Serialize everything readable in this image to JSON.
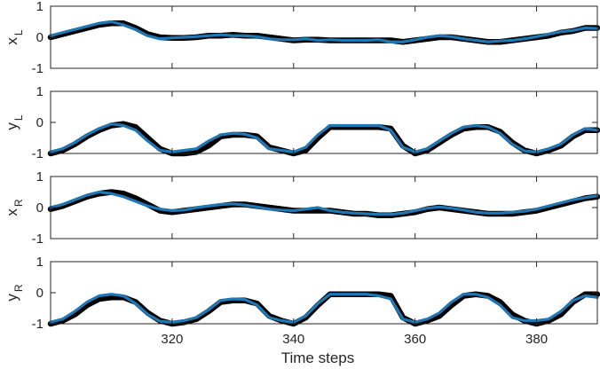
{
  "chart_data": {
    "type": "line",
    "xlabel": "Time steps",
    "xlim": [
      300,
      390
    ],
    "xticks": [
      320,
      340,
      360,
      380
    ],
    "colors": {
      "reference": "#000000",
      "prediction": "#1f77b4"
    },
    "panels": [
      {
        "ylabel_main": "x",
        "ylabel_sub": "L",
        "ylim": [
          -1,
          1
        ],
        "yticks": [
          -1,
          0,
          1
        ],
        "series": [
          {
            "x": [
              300,
              302,
              304,
              306,
              308,
              310,
              312,
              314,
              316,
              318,
              320,
              322,
              324,
              326,
              328,
              330,
              332,
              334,
              336,
              338,
              340,
              342,
              344,
              346,
              348,
              350,
              352,
              354,
              356,
              358,
              360,
              362,
              364,
              366,
              368,
              370,
              372,
              374,
              376,
              378,
              380,
              382,
              384,
              386,
              388,
              390
            ],
            "values": [
              0.0,
              0.1,
              0.2,
              0.3,
              0.4,
              0.45,
              0.45,
              0.3,
              0.1,
              0.0,
              -0.02,
              -0.02,
              0.0,
              0.05,
              0.05,
              0.08,
              0.05,
              0.05,
              0.0,
              -0.05,
              -0.1,
              -0.08,
              -0.08,
              -0.1,
              -0.1,
              -0.1,
              -0.1,
              -0.1,
              -0.1,
              -0.15,
              -0.1,
              -0.05,
              0.0,
              0.0,
              -0.05,
              -0.1,
              -0.15,
              -0.15,
              -0.1,
              -0.05,
              0.0,
              0.05,
              0.15,
              0.2,
              0.3,
              0.3
            ]
          },
          {
            "x": [
              300,
              302,
              304,
              306,
              308,
              310,
              312,
              314,
              316,
              318,
              320,
              322,
              324,
              326,
              328,
              330,
              332,
              334,
              336,
              338,
              340,
              342,
              344,
              346,
              348,
              350,
              352,
              354,
              356,
              358,
              360,
              362,
              364,
              366,
              368,
              370,
              372,
              374,
              376,
              378,
              380,
              382,
              384,
              386,
              388,
              390
            ],
            "values": [
              0.05,
              0.15,
              0.25,
              0.35,
              0.45,
              0.5,
              0.4,
              0.25,
              0.05,
              -0.05,
              -0.02,
              0.0,
              0.02,
              0.05,
              0.08,
              0.05,
              0.05,
              0.02,
              -0.05,
              -0.08,
              -0.08,
              -0.05,
              -0.1,
              -0.08,
              -0.1,
              -0.1,
              -0.1,
              -0.08,
              -0.15,
              -0.15,
              -0.08,
              0.0,
              0.05,
              0.02,
              -0.05,
              -0.1,
              -0.15,
              -0.12,
              -0.1,
              -0.05,
              0.02,
              0.1,
              0.18,
              0.22,
              0.3,
              0.28
            ]
          }
        ]
      },
      {
        "ylabel_main": "y",
        "ylabel_sub": "L",
        "ylim": [
          -1,
          1
        ],
        "yticks": [
          -1,
          0,
          1
        ],
        "series": [
          {
            "x": [
              300,
              302,
              304,
              306,
              308,
              310,
              312,
              314,
              316,
              318,
              320,
              322,
              324,
              326,
              328,
              330,
              332,
              334,
              336,
              338,
              340,
              342,
              344,
              346,
              348,
              350,
              352,
              354,
              356,
              358,
              360,
              362,
              364,
              366,
              368,
              370,
              372,
              374,
              376,
              378,
              380,
              382,
              384,
              386,
              388,
              390
            ],
            "values": [
              -1.0,
              -0.9,
              -0.7,
              -0.45,
              -0.25,
              -0.1,
              -0.05,
              -0.15,
              -0.5,
              -0.85,
              -1.0,
              -1.0,
              -0.95,
              -0.75,
              -0.45,
              -0.4,
              -0.4,
              -0.45,
              -0.8,
              -0.9,
              -1.0,
              -0.9,
              -0.5,
              -0.15,
              -0.15,
              -0.15,
              -0.15,
              -0.15,
              -0.2,
              -0.75,
              -1.0,
              -0.9,
              -0.65,
              -0.4,
              -0.2,
              -0.15,
              -0.15,
              -0.3,
              -0.65,
              -0.9,
              -1.0,
              -0.9,
              -0.75,
              -0.45,
              -0.25,
              -0.25
            ]
          },
          {
            "x": [
              300,
              302,
              304,
              306,
              308,
              310,
              312,
              314,
              316,
              318,
              320,
              322,
              324,
              326,
              328,
              330,
              332,
              334,
              336,
              338,
              340,
              342,
              344,
              346,
              348,
              350,
              352,
              354,
              356,
              358,
              360,
              362,
              364,
              366,
              368,
              370,
              372,
              374,
              376,
              378,
              380,
              382,
              384,
              386,
              388,
              390
            ],
            "values": [
              -0.95,
              -0.85,
              -0.65,
              -0.4,
              -0.2,
              -0.05,
              -0.1,
              -0.25,
              -0.6,
              -0.9,
              -0.95,
              -0.9,
              -0.85,
              -0.6,
              -0.4,
              -0.35,
              -0.38,
              -0.5,
              -0.85,
              -0.9,
              -0.95,
              -0.8,
              -0.4,
              -0.1,
              -0.1,
              -0.1,
              -0.1,
              -0.1,
              -0.25,
              -0.8,
              -0.95,
              -0.85,
              -0.6,
              -0.35,
              -0.15,
              -0.1,
              -0.15,
              -0.35,
              -0.7,
              -0.92,
              -0.95,
              -0.85,
              -0.7,
              -0.4,
              -0.2,
              -0.25
            ]
          }
        ]
      },
      {
        "ylabel_main": "x",
        "ylabel_sub": "R",
        "ylim": [
          -1,
          1
        ],
        "yticks": [
          -1,
          0,
          1
        ],
        "series": [
          {
            "x": [
              300,
              302,
              304,
              306,
              308,
              310,
              312,
              314,
              316,
              318,
              320,
              322,
              324,
              326,
              328,
              330,
              332,
              334,
              336,
              338,
              340,
              342,
              344,
              346,
              348,
              350,
              352,
              354,
              356,
              358,
              360,
              362,
              364,
              366,
              368,
              370,
              372,
              374,
              376,
              378,
              380,
              382,
              384,
              386,
              388,
              390
            ],
            "values": [
              -0.05,
              0.05,
              0.2,
              0.35,
              0.45,
              0.5,
              0.45,
              0.3,
              0.1,
              -0.1,
              -0.15,
              -0.1,
              -0.05,
              0.0,
              0.05,
              0.1,
              0.1,
              0.05,
              0.0,
              -0.05,
              -0.1,
              -0.1,
              -0.1,
              -0.1,
              -0.15,
              -0.2,
              -0.2,
              -0.25,
              -0.25,
              -0.2,
              -0.15,
              -0.05,
              0.0,
              -0.05,
              -0.1,
              -0.15,
              -0.2,
              -0.2,
              -0.2,
              -0.15,
              -0.1,
              0.0,
              0.1,
              0.2,
              0.3,
              0.35
            ]
          },
          {
            "x": [
              300,
              302,
              304,
              306,
              308,
              310,
              312,
              314,
              316,
              318,
              320,
              322,
              324,
              326,
              328,
              330,
              332,
              334,
              336,
              338,
              340,
              342,
              344,
              346,
              348,
              350,
              352,
              354,
              356,
              358,
              360,
              362,
              364,
              366,
              368,
              370,
              372,
              374,
              376,
              378,
              380,
              382,
              384,
              386,
              388,
              390
            ],
            "values": [
              0.0,
              0.1,
              0.25,
              0.4,
              0.5,
              0.45,
              0.35,
              0.2,
              0.05,
              -0.05,
              -0.1,
              -0.08,
              0.0,
              0.05,
              0.1,
              0.12,
              0.08,
              0.02,
              -0.05,
              -0.08,
              -0.1,
              -0.05,
              0.0,
              -0.1,
              -0.15,
              -0.18,
              -0.2,
              -0.22,
              -0.22,
              -0.18,
              -0.1,
              -0.02,
              0.02,
              -0.02,
              -0.08,
              -0.15,
              -0.18,
              -0.18,
              -0.15,
              -0.12,
              -0.05,
              0.05,
              0.15,
              0.25,
              0.32,
              0.38
            ]
          }
        ]
      },
      {
        "ylabel_main": "y",
        "ylabel_sub": "R",
        "ylim": [
          -1,
          1
        ],
        "yticks": [
          -1,
          0,
          1
        ],
        "series": [
          {
            "x": [
              300,
              302,
              304,
              306,
              308,
              310,
              312,
              314,
              316,
              318,
              320,
              322,
              324,
              326,
              328,
              330,
              332,
              334,
              336,
              338,
              340,
              342,
              344,
              346,
              348,
              350,
              352,
              354,
              356,
              358,
              360,
              362,
              364,
              366,
              368,
              370,
              372,
              374,
              376,
              378,
              380,
              382,
              384,
              386,
              388,
              390
            ],
            "values": [
              -1.0,
              -0.9,
              -0.7,
              -0.4,
              -0.2,
              -0.15,
              -0.15,
              -0.3,
              -0.65,
              -0.9,
              -1.0,
              -0.95,
              -0.85,
              -0.6,
              -0.3,
              -0.25,
              -0.25,
              -0.35,
              -0.75,
              -0.9,
              -1.0,
              -0.8,
              -0.4,
              -0.05,
              -0.05,
              -0.05,
              -0.05,
              -0.05,
              -0.1,
              -0.8,
              -1.0,
              -0.9,
              -0.75,
              -0.4,
              -0.1,
              -0.05,
              -0.1,
              -0.3,
              -0.7,
              -0.9,
              -1.0,
              -0.9,
              -0.7,
              -0.3,
              -0.05,
              -0.05
            ]
          },
          {
            "x": [
              300,
              302,
              304,
              306,
              308,
              310,
              312,
              314,
              316,
              318,
              320,
              322,
              324,
              326,
              328,
              330,
              332,
              334,
              336,
              338,
              340,
              342,
              344,
              346,
              348,
              350,
              352,
              354,
              356,
              358,
              360,
              362,
              364,
              366,
              368,
              370,
              372,
              374,
              376,
              378,
              380,
              382,
              384,
              386,
              388,
              390
            ],
            "values": [
              -0.95,
              -0.85,
              -0.6,
              -0.3,
              -0.1,
              -0.05,
              -0.1,
              -0.35,
              -0.7,
              -0.92,
              -0.95,
              -0.9,
              -0.8,
              -0.55,
              -0.25,
              -0.2,
              -0.22,
              -0.4,
              -0.8,
              -0.9,
              -0.95,
              -0.75,
              -0.35,
              -0.05,
              -0.05,
              -0.05,
              -0.05,
              -0.1,
              -0.2,
              -0.85,
              -0.95,
              -0.85,
              -0.65,
              -0.3,
              -0.05,
              -0.05,
              -0.15,
              -0.4,
              -0.8,
              -0.9,
              -0.9,
              -0.85,
              -0.6,
              -0.25,
              -0.1,
              -0.15
            ]
          }
        ]
      }
    ]
  }
}
